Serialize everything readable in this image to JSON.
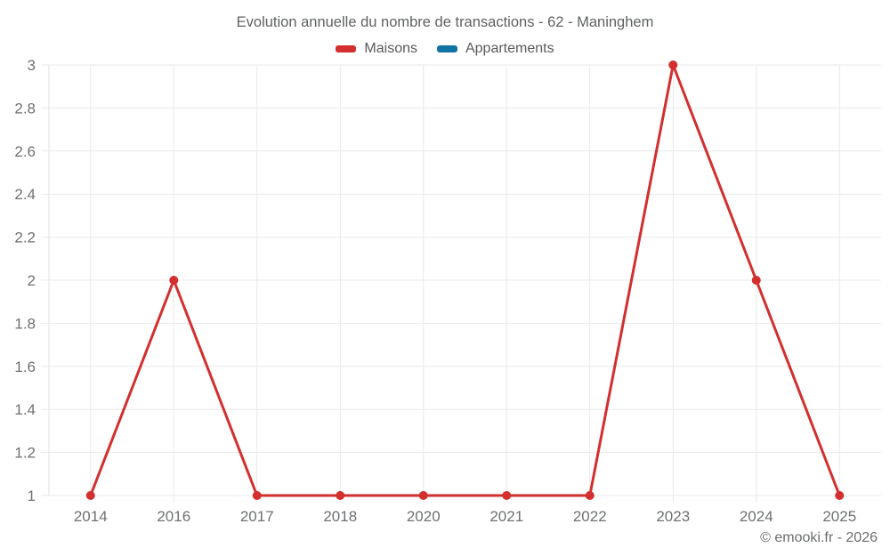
{
  "chart_data": {
    "type": "line",
    "title": "Evolution annuelle du nombre de transactions - 62 - Maninghem",
    "categories": [
      "2014",
      "2016",
      "2017",
      "2018",
      "2020",
      "2021",
      "2022",
      "2023",
      "2024",
      "2025"
    ],
    "series": [
      {
        "name": "Maisons",
        "color": "#d32f2f",
        "values": [
          1,
          2,
          1,
          1,
          1,
          1,
          1,
          3,
          2,
          1
        ]
      },
      {
        "name": "Appartements",
        "color": "#1272a3",
        "values": []
      }
    ],
    "ylim": [
      1,
      3
    ],
    "y_ticks": [
      1,
      1.2,
      1.4,
      1.6,
      1.8,
      2,
      2.2,
      2.4,
      2.6,
      2.8,
      3
    ],
    "xlabel": "",
    "ylabel": "",
    "grid": true,
    "legend_position": "top"
  },
  "footer": {
    "copyright": "© emooki.fr - 2026"
  }
}
